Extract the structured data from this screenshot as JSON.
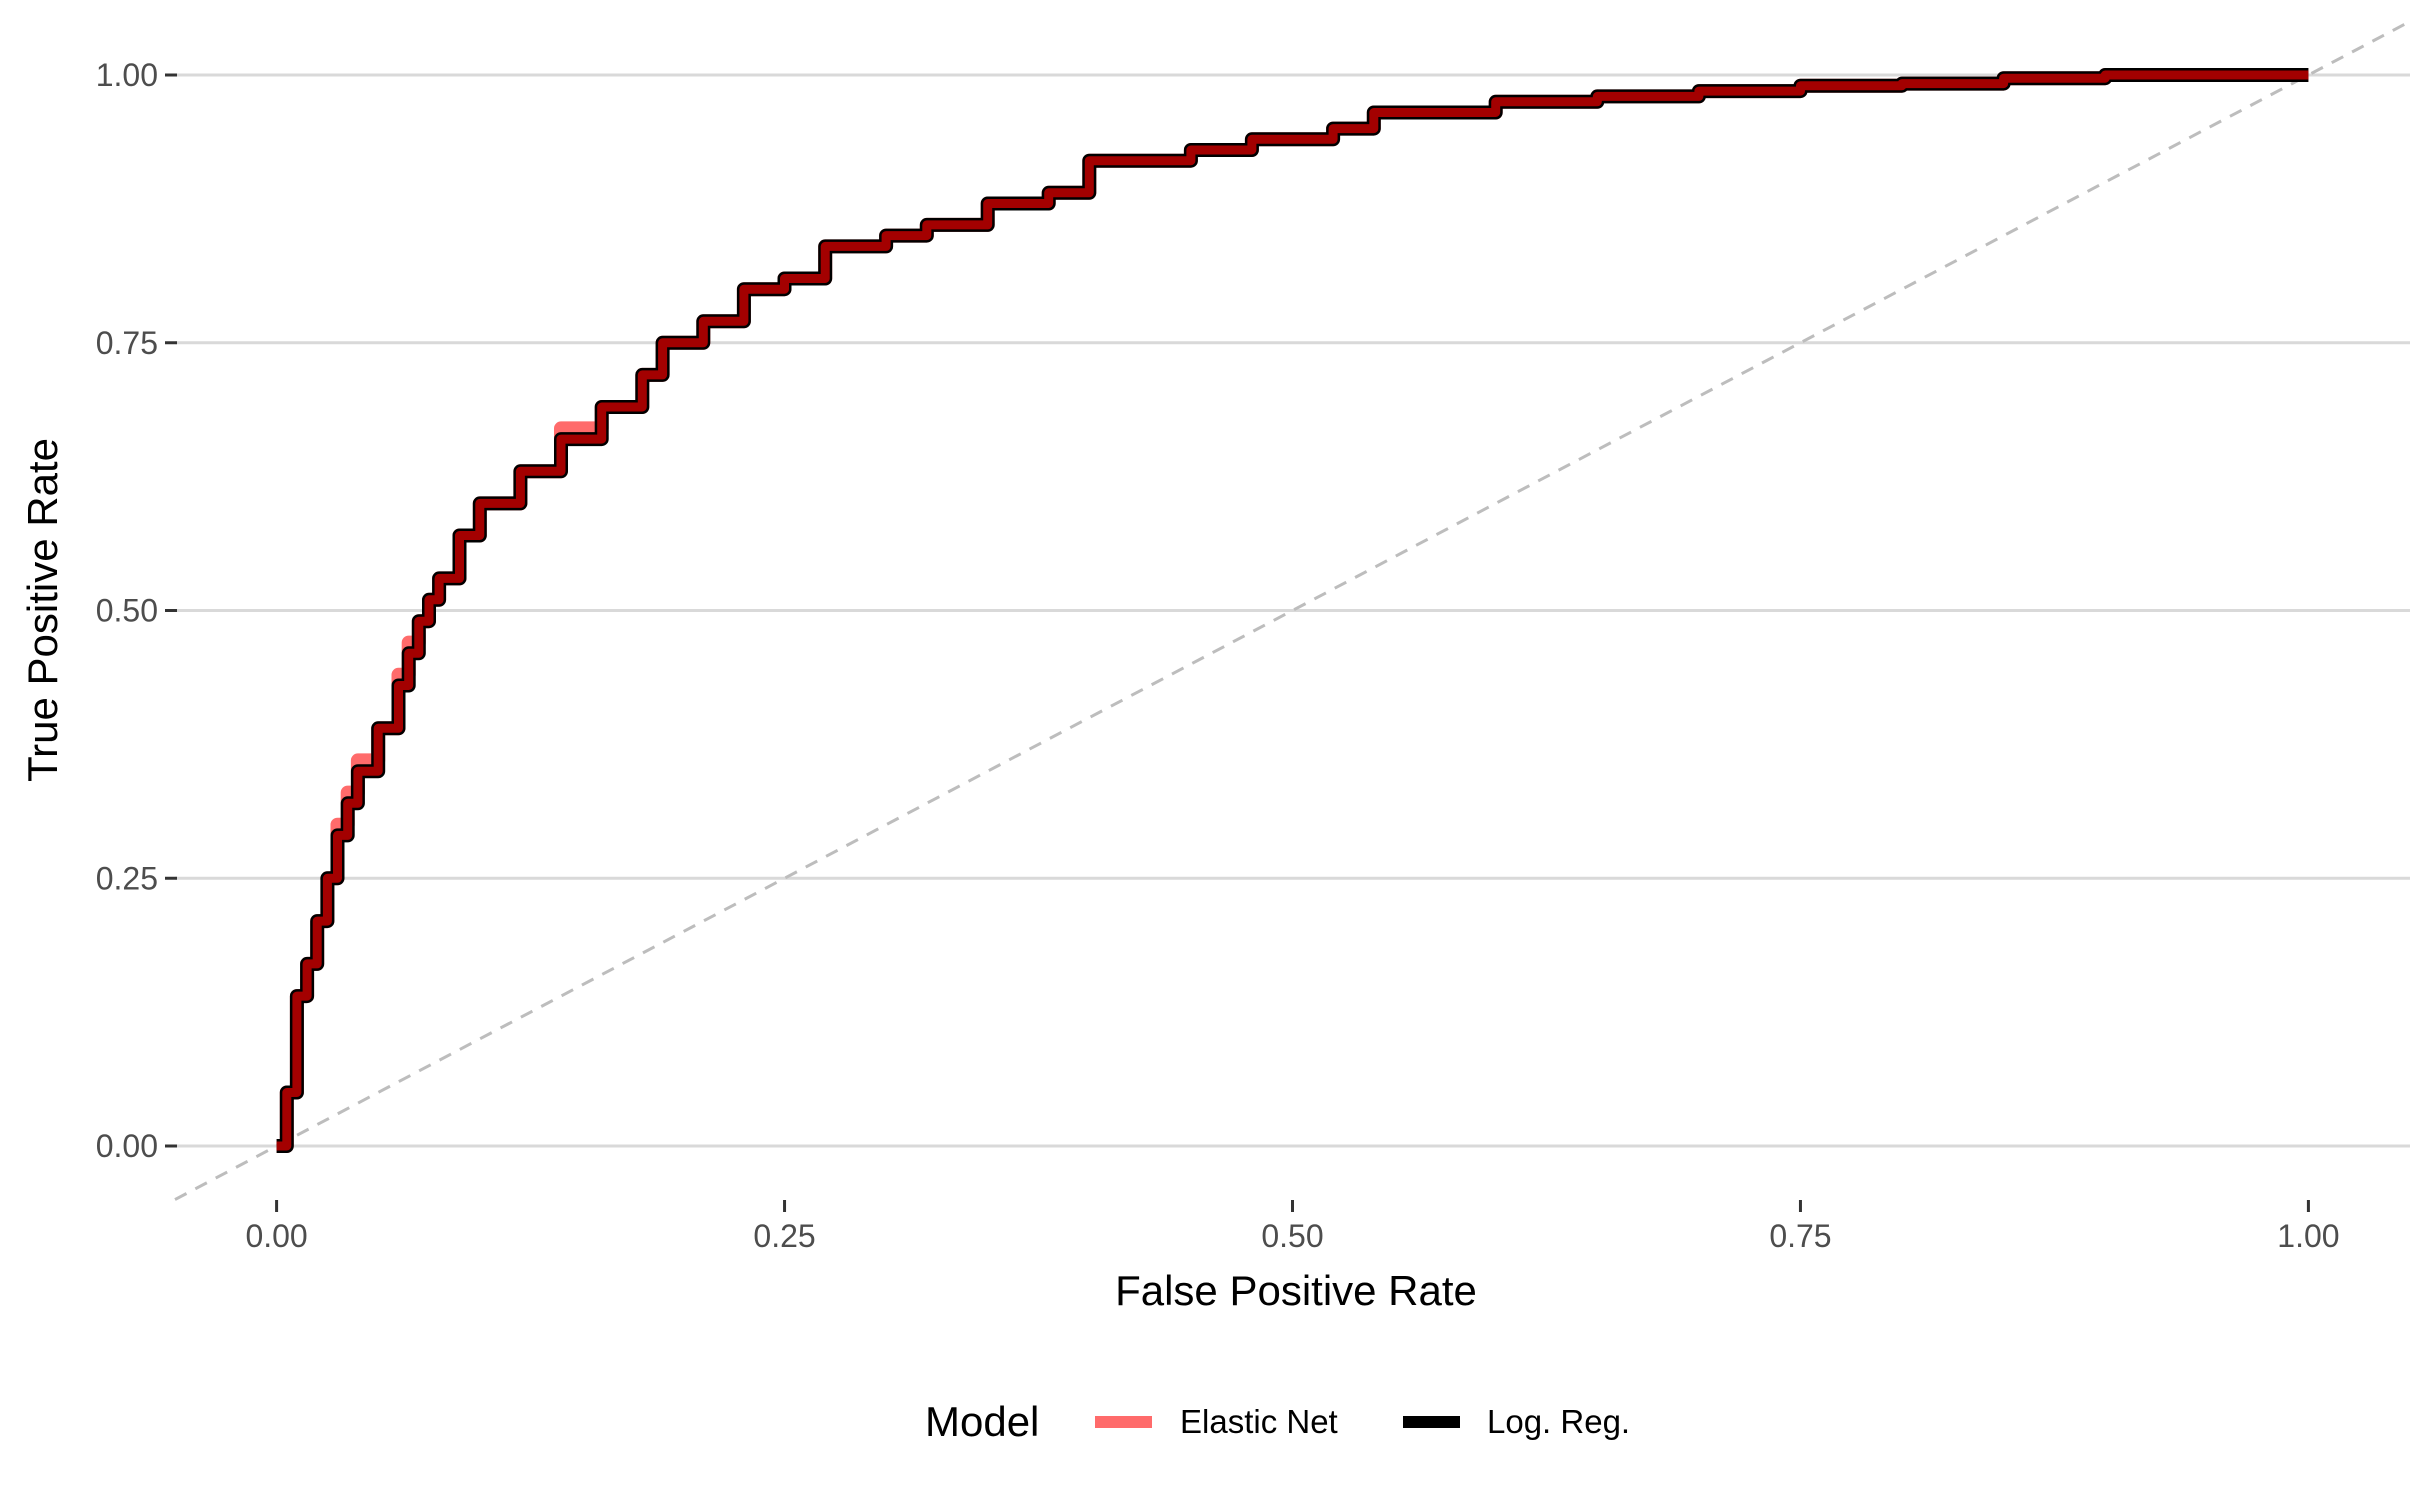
{
  "chart_data": {
    "type": "line",
    "xlabel": "False Positive Rate",
    "ylabel": "True Positive Rate",
    "xlim": [
      -0.05,
      1.05
    ],
    "ylim": [
      0,
      1
    ],
    "x_ticks": [
      0,
      0.25,
      0.5,
      0.75,
      1
    ],
    "y_ticks": [
      0,
      0.25,
      0.5,
      0.75,
      1
    ],
    "x_tick_labels": [
      "0.00",
      "0.25",
      "0.50",
      "0.75",
      "1.00"
    ],
    "y_tick_labels": [
      "0.00",
      "0.25",
      "0.50",
      "0.75",
      "1.00"
    ],
    "grid": "horizontal major gridlines",
    "reference_line": {
      "style": "dashed",
      "color": "#bdbdbd",
      "x": [
        -0.05,
        1.05
      ],
      "y": [
        -0.05,
        1.05
      ]
    },
    "legend": {
      "title": "Model",
      "position": "bottom"
    },
    "series": [
      {
        "name": "Log. Reg.",
        "color": "#000000",
        "x": [
          0,
          0.005,
          0.01,
          0.015,
          0.02,
          0.025,
          0.03,
          0.035,
          0.04,
          0.05,
          0.06,
          0.065,
          0.07,
          0.075,
          0.08,
          0.09,
          0.1,
          0.12,
          0.14,
          0.16,
          0.18,
          0.19,
          0.21,
          0.23,
          0.25,
          0.27,
          0.3,
          0.32,
          0.35,
          0.38,
          0.4,
          0.45,
          0.48,
          0.52,
          0.54,
          0.6,
          0.65,
          0.7,
          0.75,
          0.8,
          0.85,
          0.9,
          0.95,
          1
        ],
        "y": [
          0,
          0.05,
          0.14,
          0.17,
          0.21,
          0.25,
          0.29,
          0.32,
          0.35,
          0.39,
          0.43,
          0.46,
          0.49,
          0.51,
          0.53,
          0.57,
          0.6,
          0.63,
          0.66,
          0.69,
          0.72,
          0.75,
          0.77,
          0.8,
          0.81,
          0.84,
          0.85,
          0.86,
          0.88,
          0.89,
          0.92,
          0.93,
          0.94,
          0.95,
          0.965,
          0.975,
          0.98,
          0.985,
          0.99,
          0.992,
          0.997,
          1.0,
          1.0,
          1.0
        ]
      },
      {
        "name": "Elastic Net",
        "color": "#ff6b6b",
        "x": [
          0,
          0.005,
          0.01,
          0.015,
          0.02,
          0.025,
          0.03,
          0.035,
          0.04,
          0.05,
          0.06,
          0.065,
          0.07,
          0.075,
          0.08,
          0.09,
          0.1,
          0.12,
          0.14,
          0.16,
          0.18,
          0.19,
          0.21,
          0.23,
          0.25,
          0.27,
          0.3,
          0.32,
          0.35,
          0.38,
          0.4,
          0.45,
          0.48,
          0.52,
          0.54,
          0.6,
          0.65,
          0.7,
          0.75,
          0.8,
          0.85,
          0.9,
          0.95,
          1
        ],
        "y": [
          0,
          0.05,
          0.14,
          0.17,
          0.21,
          0.25,
          0.3,
          0.33,
          0.36,
          0.39,
          0.44,
          0.47,
          0.49,
          0.51,
          0.53,
          0.57,
          0.6,
          0.63,
          0.67,
          0.69,
          0.72,
          0.75,
          0.77,
          0.8,
          0.81,
          0.84,
          0.85,
          0.86,
          0.88,
          0.89,
          0.92,
          0.93,
          0.94,
          0.95,
          0.965,
          0.975,
          0.98,
          0.985,
          0.99,
          0.992,
          0.997,
          1.0,
          1.0,
          1.0
        ]
      }
    ],
    "overlap_color": "#a30000"
  }
}
